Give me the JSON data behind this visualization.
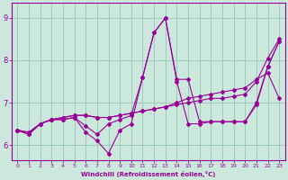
{
  "xlabel": "Windchill (Refroidissement éolien,°C)",
  "bg_color": "#cce8dd",
  "grid_color": "#99ccbb",
  "line_color": "#990099",
  "xlim": [
    -0.5,
    23.5
  ],
  "ylim": [
    5.65,
    9.35
  ],
  "yticks": [
    6,
    7,
    8,
    9
  ],
  "xticks": [
    0,
    1,
    2,
    3,
    4,
    5,
    6,
    7,
    8,
    9,
    10,
    11,
    12,
    13,
    14,
    15,
    16,
    17,
    18,
    19,
    20,
    21,
    22,
    23
  ],
  "series1_x": [
    0,
    1,
    2,
    3,
    4,
    5,
    6,
    7,
    8,
    9,
    10,
    11,
    12,
    13,
    14,
    15,
    16,
    17,
    18,
    19,
    20,
    21,
    22,
    23
  ],
  "series1_y": [
    6.35,
    6.25,
    6.5,
    6.6,
    6.6,
    6.65,
    6.45,
    6.25,
    6.5,
    6.6,
    6.7,
    7.6,
    8.65,
    9.0,
    7.55,
    7.55,
    6.55,
    6.55,
    6.55,
    6.55,
    6.55,
    7.0,
    7.85,
    8.45
  ],
  "series2_x": [
    0,
    1,
    2,
    3,
    4,
    5,
    6,
    7,
    8,
    9,
    10,
    11,
    12,
    13,
    14,
    15,
    16,
    17,
    18,
    19,
    20,
    21,
    22,
    23
  ],
  "series2_y": [
    6.35,
    6.25,
    6.5,
    6.6,
    6.6,
    6.65,
    6.3,
    6.1,
    5.8,
    6.35,
    6.5,
    7.6,
    8.65,
    9.0,
    7.5,
    6.5,
    6.5,
    6.55,
    6.55,
    6.55,
    6.55,
    6.95,
    7.85,
    8.45
  ],
  "series3_x": [
    0,
    1,
    2,
    3,
    4,
    5,
    6,
    7,
    8,
    9,
    10,
    11,
    12,
    13,
    14,
    15,
    16,
    17,
    18,
    19,
    20,
    21,
    22,
    23
  ],
  "series3_y": [
    6.35,
    6.3,
    6.5,
    6.6,
    6.65,
    6.7,
    6.7,
    6.65,
    6.65,
    6.7,
    6.75,
    6.8,
    6.85,
    6.9,
    6.95,
    7.0,
    7.05,
    7.1,
    7.1,
    7.15,
    7.2,
    7.5,
    8.05,
    8.5
  ],
  "series4_x": [
    0,
    1,
    2,
    3,
    4,
    5,
    6,
    7,
    8,
    9,
    10,
    11,
    12,
    13,
    14,
    15,
    16,
    17,
    18,
    19,
    20,
    21,
    22,
    23
  ],
  "series4_y": [
    6.35,
    6.3,
    6.5,
    6.6,
    6.65,
    6.7,
    6.7,
    6.65,
    6.65,
    6.7,
    6.75,
    6.8,
    6.85,
    6.9,
    7.0,
    7.1,
    7.15,
    7.2,
    7.25,
    7.3,
    7.35,
    7.55,
    7.7,
    7.1
  ]
}
